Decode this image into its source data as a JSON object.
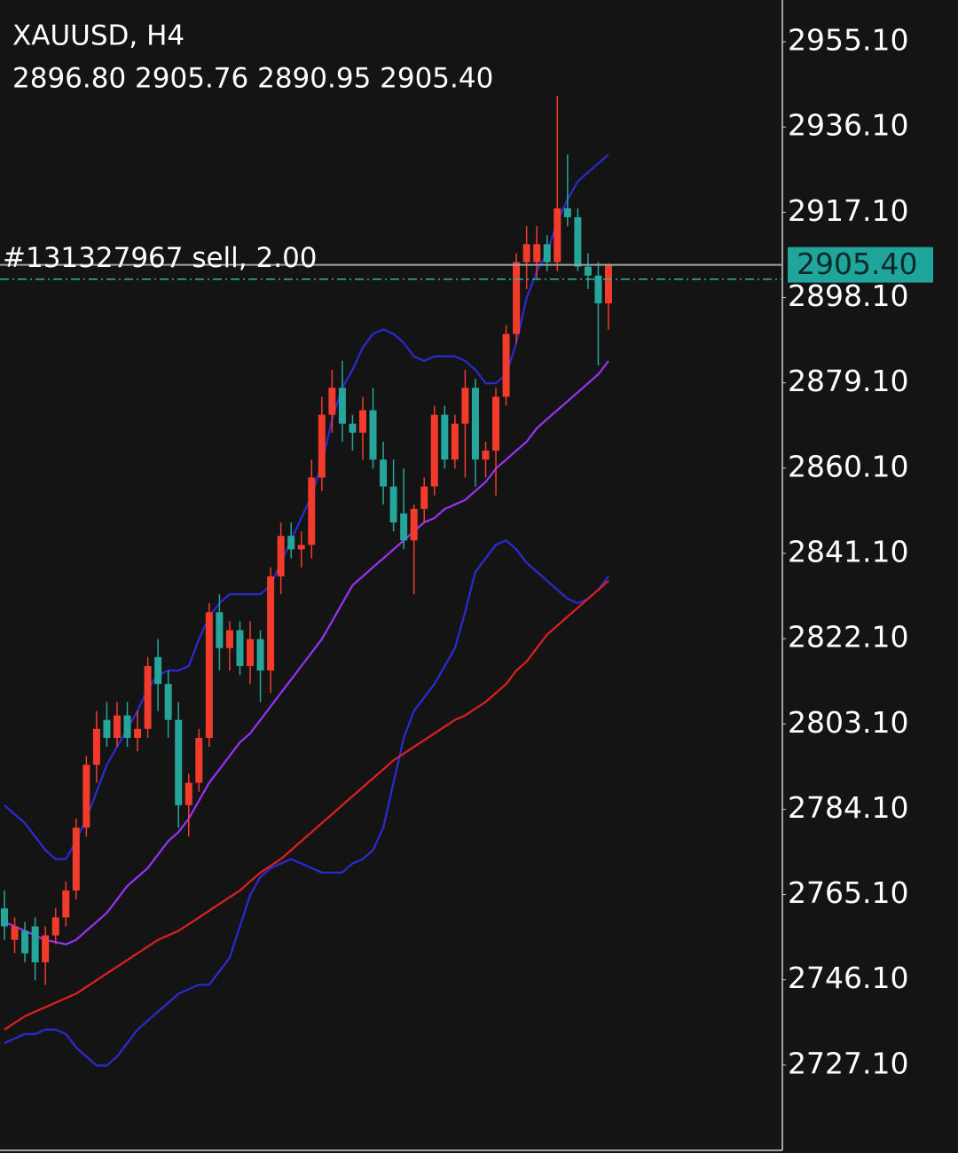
{
  "header": {
    "symbol": "XAUUSD, H4",
    "ohlc": "2896.80 2905.76 2890.95 2905.40"
  },
  "chart_data": {
    "type": "candlestick",
    "ylim": [
      2708.1,
      2964.4
    ],
    "yticks": [
      {
        "value": 2955.1,
        "label": "2955.10"
      },
      {
        "value": 2936.1,
        "label": "2936.10"
      },
      {
        "value": 2917.1,
        "label": "2917.10"
      },
      {
        "value": 2898.1,
        "label": "2898.10"
      },
      {
        "value": 2879.1,
        "label": "2879.10"
      },
      {
        "value": 2860.1,
        "label": "2860.10"
      },
      {
        "value": 2841.1,
        "label": "2841.10"
      },
      {
        "value": 2822.1,
        "label": "2822.10"
      },
      {
        "value": 2803.1,
        "label": "2803.10"
      },
      {
        "value": 2784.1,
        "label": "2784.10"
      },
      {
        "value": 2765.1,
        "label": "2765.10"
      },
      {
        "value": 2746.1,
        "label": "2746.10"
      },
      {
        "value": 2727.1,
        "label": "2727.10"
      }
    ],
    "up_color": "#f23b2a",
    "down_color": "#26a69a",
    "ohlc": [
      [
        2762,
        2766,
        2755,
        2758
      ],
      [
        2755,
        2760,
        2752,
        2758
      ],
      [
        2757,
        2759,
        2750,
        2752
      ],
      [
        2758,
        2760,
        2746,
        2750
      ],
      [
        2750,
        2758,
        2745,
        2756
      ],
      [
        2756,
        2762,
        2754,
        2760
      ],
      [
        2760,
        2768,
        2758,
        2766
      ],
      [
        2766,
        2782,
        2764,
        2780
      ],
      [
        2780,
        2796,
        2778,
        2794
      ],
      [
        2794,
        2806,
        2790,
        2802
      ],
      [
        2804,
        2808,
        2798,
        2800
      ],
      [
        2800,
        2808,
        2798,
        2805
      ],
      [
        2805,
        2808,
        2798,
        2800
      ],
      [
        2800,
        2806,
        2797,
        2802
      ],
      [
        2802,
        2818,
        2800,
        2816
      ],
      [
        2818,
        2822,
        2806,
        2812
      ],
      [
        2812,
        2815,
        2800,
        2804
      ],
      [
        2804,
        2808,
        2780,
        2785
      ],
      [
        2785,
        2792,
        2778,
        2790
      ],
      [
        2790,
        2802,
        2788,
        2800
      ],
      [
        2800,
        2830,
        2798,
        2828
      ],
      [
        2828,
        2832,
        2815,
        2820
      ],
      [
        2820,
        2826,
        2815,
        2824
      ],
      [
        2824,
        2826,
        2814,
        2816
      ],
      [
        2816,
        2826,
        2812,
        2822
      ],
      [
        2822,
        2824,
        2808,
        2815
      ],
      [
        2815,
        2838,
        2810,
        2836
      ],
      [
        2836,
        2848,
        2832,
        2845
      ],
      [
        2845,
        2848,
        2840,
        2842
      ],
      [
        2842,
        2846,
        2838,
        2843
      ],
      [
        2843,
        2862,
        2840,
        2858
      ],
      [
        2858,
        2876,
        2855,
        2872
      ],
      [
        2872,
        2882,
        2868,
        2878
      ],
      [
        2878,
        2884,
        2866,
        2870
      ],
      [
        2870,
        2872,
        2864,
        2868
      ],
      [
        2868,
        2876,
        2862,
        2873
      ],
      [
        2873,
        2878,
        2860,
        2862
      ],
      [
        2862,
        2866,
        2852,
        2856
      ],
      [
        2856,
        2862,
        2846,
        2848
      ],
      [
        2850,
        2860,
        2842,
        2844
      ],
      [
        2844,
        2852,
        2832,
        2851
      ],
      [
        2851,
        2858,
        2848,
        2856
      ],
      [
        2856,
        2874,
        2854,
        2872
      ],
      [
        2872,
        2874,
        2860,
        2862
      ],
      [
        2862,
        2872,
        2860,
        2870
      ],
      [
        2870,
        2882,
        2858,
        2878
      ],
      [
        2878,
        2880,
        2856,
        2862
      ],
      [
        2862,
        2866,
        2858,
        2864
      ],
      [
        2864,
        2878,
        2854,
        2876
      ],
      [
        2876,
        2892,
        2874,
        2890
      ],
      [
        2890,
        2908,
        2888,
        2906
      ],
      [
        2906,
        2914,
        2900,
        2910
      ],
      [
        2906,
        2914,
        2902,
        2910
      ],
      [
        2910,
        2912,
        2904,
        2906
      ],
      [
        2906,
        2943,
        2904,
        2918
      ],
      [
        2918,
        2930,
        2914,
        2916
      ],
      [
        2916,
        2918,
        2904,
        2905
      ],
      [
        2905,
        2908,
        2900,
        2903
      ],
      [
        2903,
        2906,
        2883,
        2896.8
      ],
      [
        2896.8,
        2905.76,
        2890.95,
        2905.4
      ]
    ],
    "series": [
      {
        "color": "#2b2bd6",
        "values": [
          2785,
          2783,
          2781,
          2778,
          2775,
          2773,
          2773,
          2777,
          2782,
          2788,
          2794,
          2798,
          2802,
          2806,
          2811,
          2814,
          2815,
          2815,
          2816,
          2822,
          2827,
          2830,
          2832,
          2832,
          2832,
          2832,
          2834,
          2839,
          2844,
          2849,
          2854,
          2861,
          2871,
          2878,
          2882,
          2887,
          2890,
          2891,
          2890,
          2888,
          2885,
          2884,
          2885,
          2885,
          2885,
          2884,
          2882,
          2879,
          2879,
          2881,
          2888,
          2898,
          2904,
          2908,
          2915,
          2920,
          2924,
          2926,
          2928,
          2930
        ]
      },
      {
        "color": "#9b30ff",
        "values": [
          2759,
          2758,
          2757,
          2756,
          2755,
          2754.5,
          2754,
          2755,
          2757,
          2759,
          2761,
          2764,
          2767,
          2769,
          2771,
          2774,
          2777,
          2779,
          2782,
          2786,
          2790,
          2793,
          2796,
          2799,
          2801,
          2804,
          2807,
          2810,
          2813,
          2816,
          2819,
          2822,
          2826,
          2830,
          2834,
          2836,
          2838,
          2840,
          2842,
          2844,
          2846,
          2848,
          2849,
          2851,
          2852,
          2853,
          2855,
          2857,
          2860,
          2862,
          2864,
          2866,
          2869,
          2871,
          2873,
          2875,
          2877,
          2879,
          2881,
          2884
        ]
      },
      {
        "color": "#2b2bd6",
        "values": [
          2732,
          2733,
          2734,
          2734,
          2735,
          2735,
          2734,
          2731,
          2729,
          2727,
          2727,
          2729,
          2732,
          2735,
          2737,
          2739,
          2741,
          2743,
          2744,
          2745,
          2745,
          2748,
          2751,
          2758,
          2765,
          2769,
          2771,
          2772,
          2773,
          2772,
          2771,
          2770,
          2770,
          2770,
          2772,
          2773,
          2775,
          2780,
          2790,
          2800,
          2806,
          2809,
          2812,
          2816,
          2820,
          2828,
          2837,
          2840,
          2843,
          2844,
          2842,
          2839,
          2837,
          2835,
          2833,
          2831,
          2830,
          2831,
          2833,
          2836
        ]
      },
      {
        "color": "#e02020",
        "values": [
          2735,
          2736.5,
          2738,
          2739,
          2740,
          2741,
          2742,
          2743,
          2744.5,
          2746,
          2747.5,
          2749,
          2750.5,
          2752,
          2753.5,
          2755,
          2756,
          2757,
          2758.5,
          2760,
          2761.5,
          2763,
          2764.5,
          2766,
          2768,
          2770,
          2771.5,
          2773,
          2775,
          2777,
          2779,
          2781,
          2783,
          2785,
          2787,
          2789,
          2791,
          2793,
          2795,
          2796.5,
          2798,
          2799.5,
          2801,
          2802.5,
          2804,
          2805,
          2806.5,
          2808,
          2810,
          2812,
          2815,
          2817,
          2820,
          2823,
          2825,
          2827,
          2829,
          2831,
          2833,
          2835
        ]
      }
    ],
    "bid": {
      "value": 2905.4,
      "label": "2905.40",
      "color": "#1fa59b"
    },
    "order": {
      "value": 2902.2,
      "label": "#131327967 sell, 2.00",
      "color": "#2bb5a8"
    }
  }
}
